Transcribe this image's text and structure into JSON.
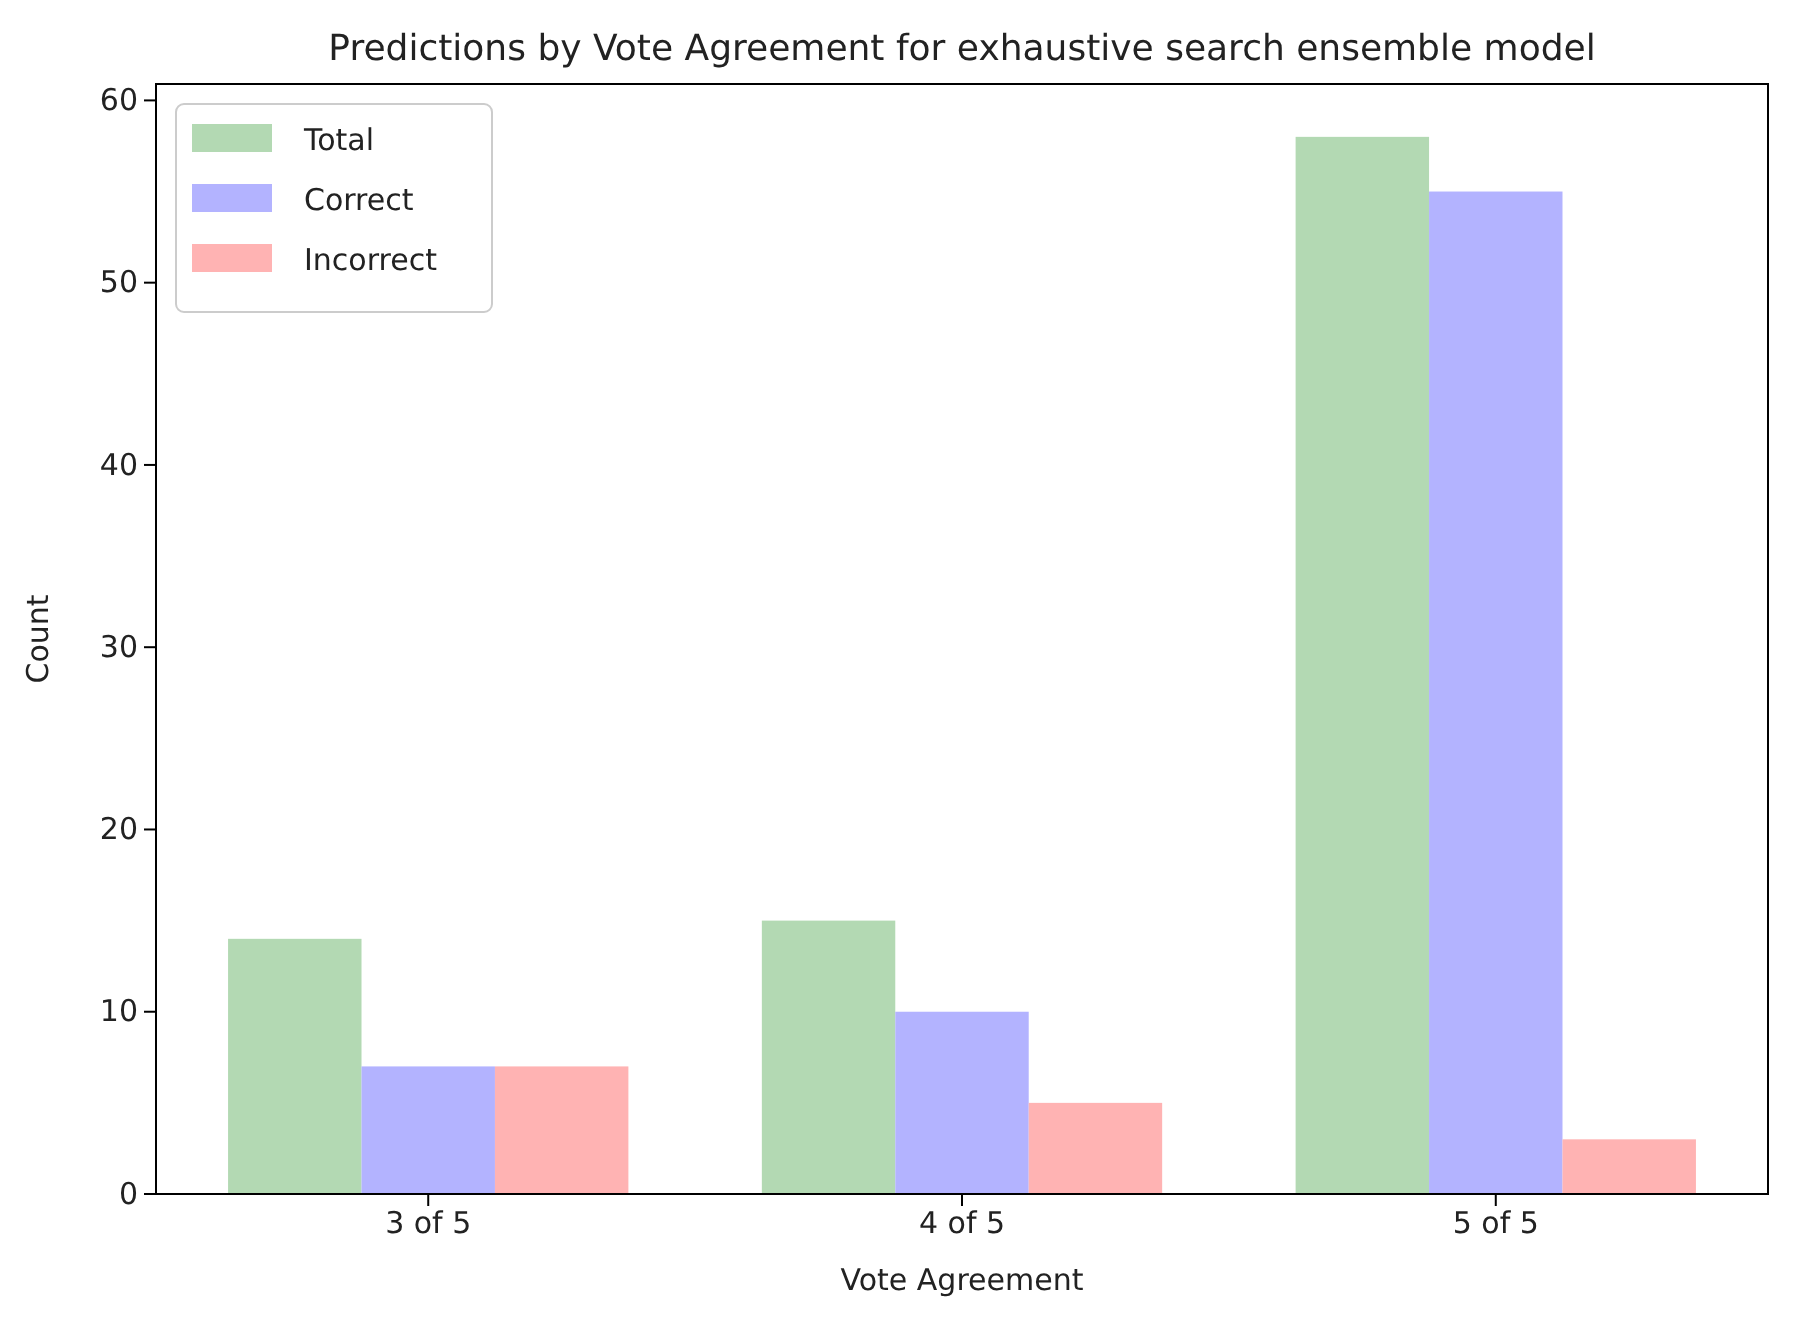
{
  "chart_data": {
    "type": "bar",
    "title": "Predictions by Vote Agreement for exhaustive search ensemble model",
    "xlabel": "Vote Agreement",
    "ylabel": "Count",
    "categories": [
      "3 of 5",
      "4 of 5",
      "5 of 5"
    ],
    "series": [
      {
        "name": "Total",
        "color": "#b3d9b3",
        "values": [
          14,
          15,
          58
        ]
      },
      {
        "name": "Correct",
        "color": "#b3b3ff",
        "values": [
          7,
          10,
          55
        ]
      },
      {
        "name": "Incorrect",
        "color": "#ffb3b3",
        "values": [
          7,
          5,
          3
        ]
      }
    ],
    "ylim": [
      0,
      60.9
    ],
    "yticks": [
      0,
      10,
      20,
      30,
      40,
      50,
      60
    ],
    "grid": false,
    "legend": "top left"
  }
}
